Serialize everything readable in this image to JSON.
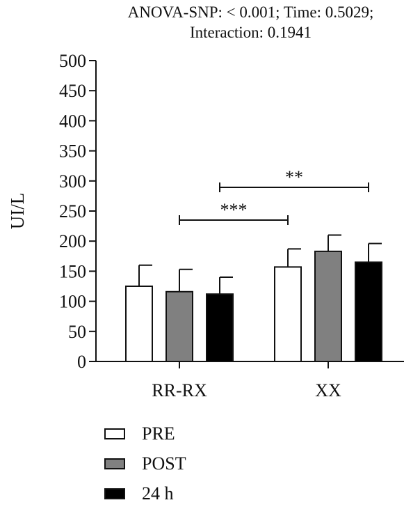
{
  "chart_data": {
    "type": "bar",
    "title_lines": [
      "ANOVA-SNP: < 0.001; Time: 0.5029;",
      "Interaction: 0.1941"
    ],
    "ylabel": "UI/L",
    "xlabel": "",
    "ylim": [
      0,
      500
    ],
    "yticks": [
      0,
      50,
      100,
      150,
      200,
      250,
      300,
      350,
      400,
      450,
      500
    ],
    "categories": [
      "RR-RX",
      "XX"
    ],
    "series": [
      {
        "name": "PRE",
        "color": "#ffffff",
        "values": [
          125,
          157
        ],
        "errors": [
          35,
          30
        ]
      },
      {
        "name": "POST",
        "color": "#808080",
        "values": [
          116,
          183
        ],
        "errors": [
          37,
          27
        ]
      },
      {
        "name": "24 h",
        "color": "#000000",
        "values": [
          112,
          165
        ],
        "errors": [
          28,
          31
        ]
      }
    ],
    "significance": [
      {
        "label": "***",
        "from": {
          "category": "RR-RX",
          "series": "POST"
        },
        "to": {
          "category": "XX",
          "series": "PRE"
        }
      },
      {
        "label": "**",
        "from": {
          "category": "RR-RX",
          "series": "24 h"
        },
        "to": {
          "category": "XX",
          "series": "24 h"
        }
      }
    ],
    "grid": false,
    "legend_position": "bottom-left"
  }
}
